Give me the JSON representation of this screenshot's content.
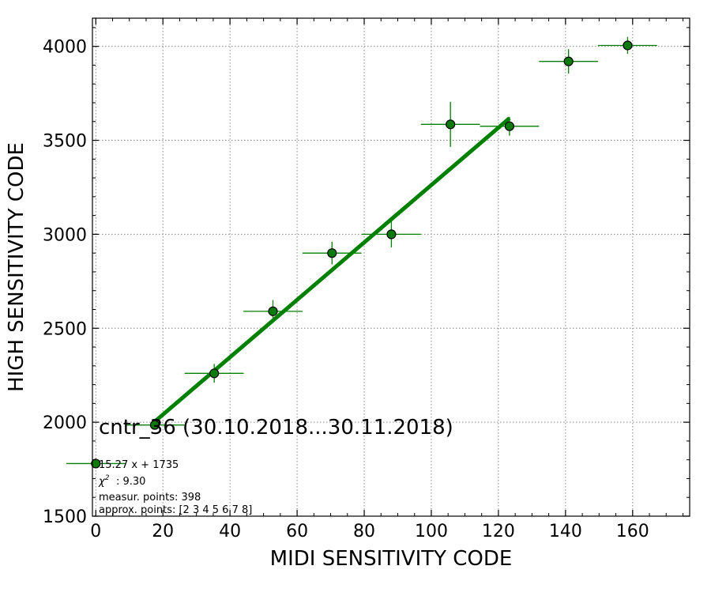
{
  "chart_data": {
    "type": "scatter",
    "title": "cntr_36 (30.10.2018...30.11.2018)",
    "xlabel": "MIDI SENSITIVITY CODE",
    "ylabel": "HIGH SENSITIVITY CODE",
    "xlim": [
      -1,
      177
    ],
    "ylim": [
      1500,
      4150
    ],
    "xticks": [
      0,
      20,
      40,
      60,
      80,
      100,
      120,
      140,
      160
    ],
    "yticks": [
      1500,
      2000,
      2500,
      3000,
      3500,
      4000
    ],
    "grid": true,
    "series": [
      {
        "kind": "points-with-errorbars",
        "color": "#008000",
        "marker_face": "#0a7a0a",
        "points": [
          {
            "x": 0,
            "y": 1780,
            "xerr": 8.8,
            "yerr": 0
          },
          {
            "x": 17.6,
            "y": 1985,
            "xerr": 8.8,
            "yerr": 0
          },
          {
            "x": 35.3,
            "y": 2260,
            "xerr": 8.8,
            "yerr": 50
          },
          {
            "x": 52.8,
            "y": 2590,
            "xerr": 8.8,
            "yerr": 60
          },
          {
            "x": 70.4,
            "y": 2900,
            "xerr": 8.8,
            "yerr": 60
          },
          {
            "x": 88.1,
            "y": 3000,
            "xerr": 8.8,
            "yerr": 70
          },
          {
            "x": 105.7,
            "y": 3585,
            "xerr": 8.8,
            "yerr": 120
          },
          {
            "x": 123.3,
            "y": 3575,
            "xerr": 8.8,
            "yerr": 50
          },
          {
            "x": 140.9,
            "y": 3920,
            "xerr": 8.8,
            "yerr": 65
          },
          {
            "x": 158.5,
            "y": 4005,
            "xerr": 8.8,
            "yerr": 45
          }
        ]
      },
      {
        "kind": "fit-line",
        "color": "#008000",
        "slope": 15.27,
        "intercept": 1735,
        "x_range": [
          17.6,
          123.3
        ]
      }
    ],
    "annotations": [
      "15.27 x + 1735",
      "$\\chi^2$",
      ": 9.30",
      "measur. points: 398",
      "approx. points: [2 3 4 5 6 7 8]"
    ]
  }
}
